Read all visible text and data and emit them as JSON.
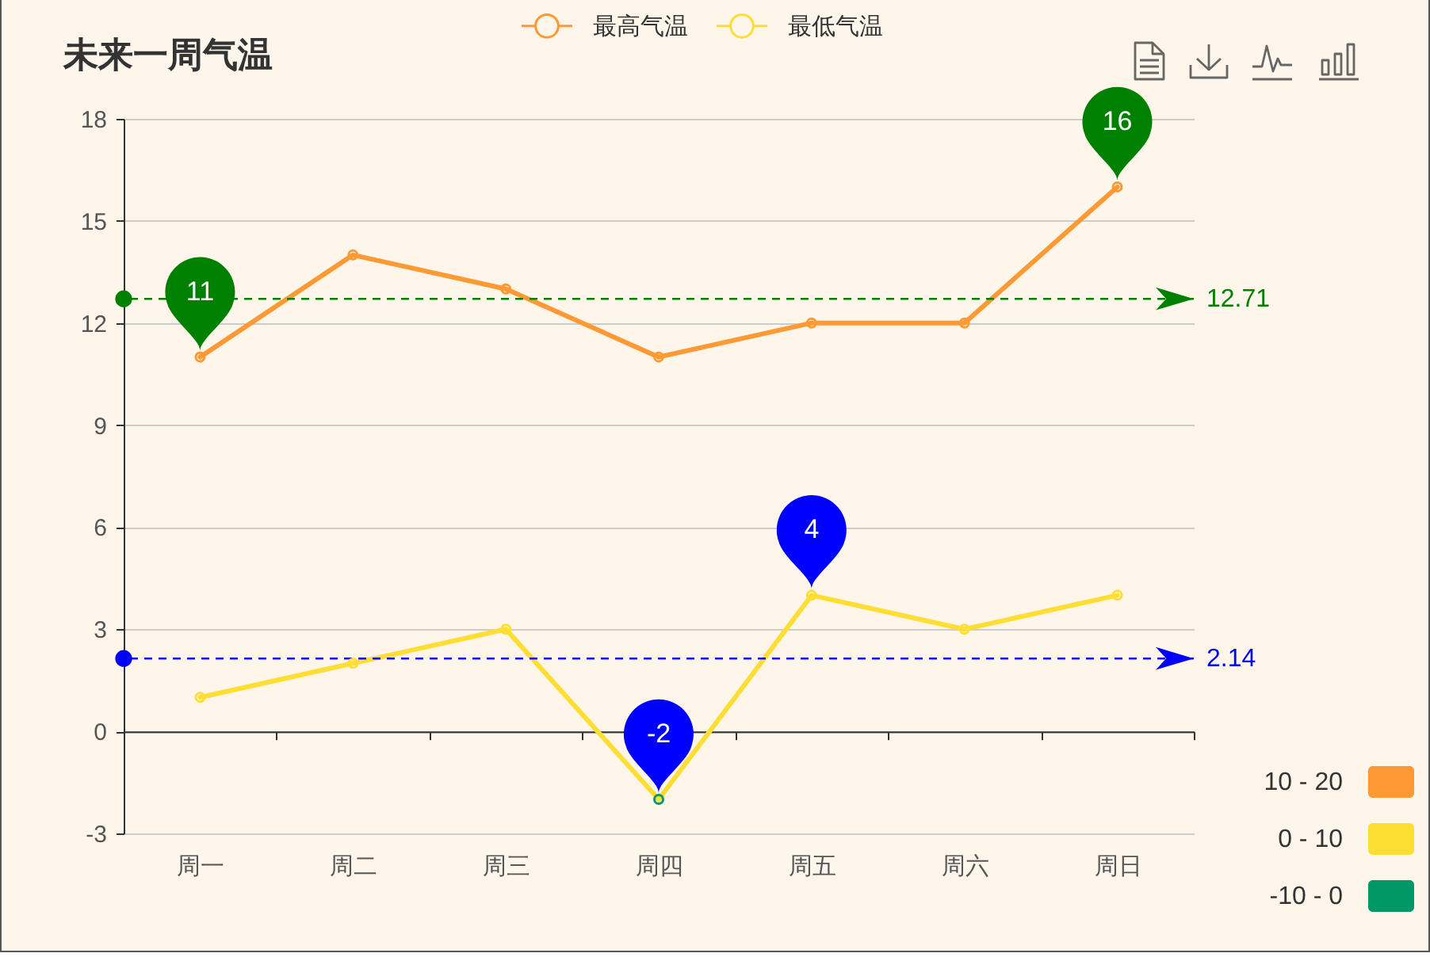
{
  "chart_data": {
    "type": "line",
    "title": "未来一周气温",
    "categories": [
      "周一",
      "周二",
      "周三",
      "周四",
      "周五",
      "周六",
      "周日"
    ],
    "series": [
      {
        "name": "最高气温",
        "color": "#ff9933",
        "values": [
          11,
          14,
          13,
          11,
          12,
          12,
          16
        ]
      },
      {
        "name": "最低气温",
        "color": "#ffde33",
        "colors": [
          "#ffde33",
          "#ffde33",
          "#ffde33",
          "#009966",
          "#ffde33",
          "#ffde33",
          "#ffde33"
        ],
        "values": [
          1,
          2,
          3,
          -2,
          4,
          3,
          4
        ]
      }
    ],
    "ylim": [
      -3,
      18
    ],
    "yticks": [
      -3,
      0,
      3,
      6,
      9,
      12,
      15,
      18
    ],
    "grid": "y",
    "legend": "top",
    "marker": "circle",
    "ref_lines": [
      {
        "axis": "y",
        "value": 12.71,
        "label": "12.71",
        "color": "#008000",
        "line_style": "dashed"
      },
      {
        "axis": "y",
        "value": 2.14,
        "label": "2.14",
        "color": "#0000ff",
        "line_style": "dashed"
      }
    ],
    "annotations": [
      {
        "text": "11",
        "x": "周一",
        "y": 11
      },
      {
        "text": "16",
        "x": "周日",
        "y": 16
      },
      {
        "text": "-2",
        "x": "周四",
        "y": -2
      },
      {
        "text": "4",
        "x": "周五",
        "y": 4
      },
      "10 - 20",
      "0 - 10",
      "-10 - 0"
    ]
  }
}
